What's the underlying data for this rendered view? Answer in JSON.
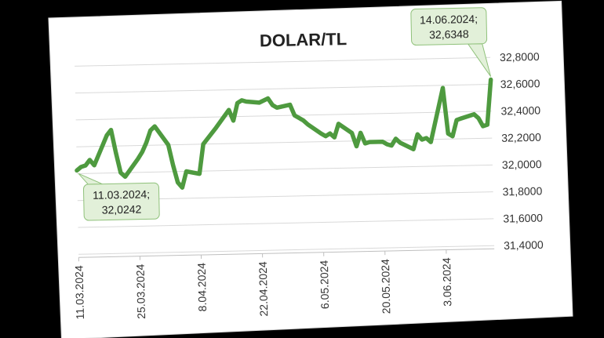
{
  "chart_data": {
    "type": "line",
    "title": "DOLAR/TL",
    "xlabel": "",
    "ylabel": "",
    "ylim": [
      31.4,
      32.8
    ],
    "y_ticks": [
      {
        "value": 32.8,
        "label": "32,8000"
      },
      {
        "value": 32.6,
        "label": "32,6000"
      },
      {
        "value": 32.4,
        "label": "32,4000"
      },
      {
        "value": 32.2,
        "label": "32,2000"
      },
      {
        "value": 32.0,
        "label": "32,0000"
      },
      {
        "value": 31.8,
        "label": "31,8000"
      },
      {
        "value": 31.6,
        "label": "31,6000"
      },
      {
        "value": 31.4,
        "label": "31,4000"
      }
    ],
    "x_ticks": [
      "11.03.2024",
      "25.03.2024",
      "8.04.2024",
      "22.04.2024",
      "6.05.2024",
      "20.05.2024",
      "3.06.2024"
    ],
    "grid": true,
    "series_color": "#4e9a3f",
    "series": [
      {
        "x": [
          "2024-03-11",
          "2024-03-12",
          "2024-03-13",
          "2024-03-14",
          "2024-03-15",
          "2024-03-18",
          "2024-03-19",
          "2024-03-20",
          "2024-03-21",
          "2024-03-22",
          "2024-03-25",
          "2024-03-26",
          "2024-03-27",
          "2024-03-28",
          "2024-03-29",
          "2024-04-01",
          "2024-04-02",
          "2024-04-03",
          "2024-04-04",
          "2024-04-05",
          "2024-04-08",
          "2024-04-09",
          "2024-04-12",
          "2024-04-15",
          "2024-04-16",
          "2024-04-17",
          "2024-04-18",
          "2024-04-19",
          "2024-04-22",
          "2024-04-24",
          "2024-04-25",
          "2024-04-26",
          "2024-04-29",
          "2024-04-30",
          "2024-05-02",
          "2024-05-03",
          "2024-05-06",
          "2024-05-07",
          "2024-05-08",
          "2024-05-09",
          "2024-05-10",
          "2024-05-13",
          "2024-05-14",
          "2024-05-15",
          "2024-05-16",
          "2024-05-17",
          "2024-05-20",
          "2024-05-21",
          "2024-05-22",
          "2024-05-23",
          "2024-05-24",
          "2024-05-27",
          "2024-05-28",
          "2024-05-29",
          "2024-05-30",
          "2024-05-31",
          "2024-06-03",
          "2024-06-04",
          "2024-06-05",
          "2024-06-06",
          "2024-06-07",
          "2024-06-10",
          "2024-06-11",
          "2024-06-12",
          "2024-06-13",
          "2024-06-14"
        ],
        "y": [
          32.0242,
          32.05,
          32.06,
          32.1,
          32.06,
          32.28,
          32.32,
          32.15,
          32.0,
          31.97,
          32.1,
          32.15,
          32.22,
          32.31,
          32.34,
          32.2,
          32.05,
          31.92,
          31.88,
          32.0,
          31.98,
          32.2,
          32.32,
          32.45,
          32.37,
          32.5,
          32.52,
          32.51,
          32.5,
          32.53,
          32.48,
          32.46,
          32.48,
          32.4,
          32.36,
          32.33,
          32.26,
          32.24,
          32.26,
          32.23,
          32.33,
          32.26,
          32.16,
          32.26,
          32.18,
          32.19,
          32.19,
          32.17,
          32.16,
          32.21,
          32.18,
          32.13,
          32.24,
          32.2,
          32.21,
          32.18,
          32.58,
          32.24,
          32.22,
          32.34,
          32.35,
          32.38,
          32.35,
          32.29,
          32.3,
          32.6348
        ]
      }
    ],
    "annotations": [
      {
        "date": "11.03.2024",
        "value": "32,0242",
        "text": "11.03.2024;",
        "value_text": "32,0242",
        "x": "2024-03-11",
        "y": 32.0242
      },
      {
        "date": "14.06.2024",
        "value": "32,6348",
        "text": "14.06.2024;",
        "value_text": "32,6348",
        "x": "2024-06-14",
        "y": 32.6348
      }
    ]
  }
}
